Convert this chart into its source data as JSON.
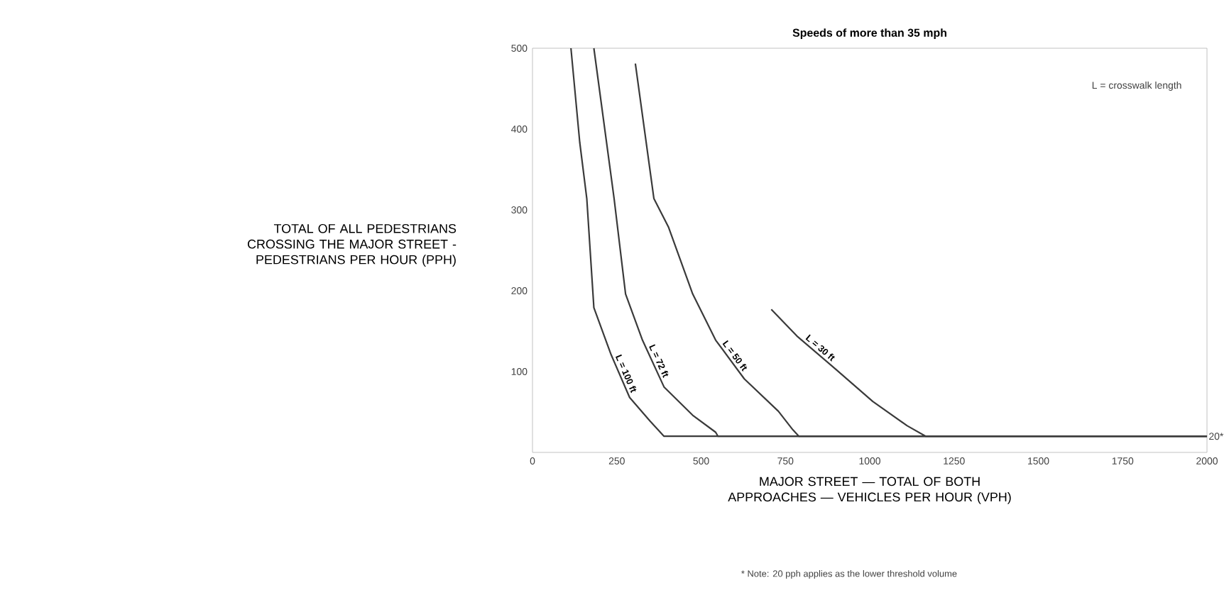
{
  "chart_data": {
    "type": "line",
    "title": "Speeds of more than 35 mph",
    "xlabel": "MAJOR STREET — TOTAL OF BOTH APPROACHES — VEHICLES PER HOUR (VPH)",
    "ylabel": "TOTAL OF ALL PEDESTRIANS CROSSING THE MAJOR STREET - PEDESTRIANS PER HOUR (PPH)",
    "annotations": [
      "L = crosswalk length",
      {
        "text": "20*",
        "x": 2000,
        "y": 20
      },
      "* Note: 20 pph applies as the lower threshold volume"
    ],
    "xlim": [
      0,
      2000
    ],
    "xticks": [
      0,
      250,
      500,
      750,
      1000,
      1250,
      1500,
      1750,
      2000
    ],
    "ylim": [
      0,
      500
    ],
    "yticks": [
      100,
      200,
      300,
      400,
      500
    ],
    "grid": false,
    "marker": "none",
    "line_style": "solid",
    "series": [
      {
        "name": "L = 100 ft",
        "color": "#3a3a3a",
        "x": [
          114,
          140,
          161,
          182,
          233,
          288,
          348,
          390,
          2000
        ],
        "values": [
          500,
          384,
          314,
          179,
          121,
          68,
          39,
          20,
          20
        ]
      },
      {
        "name": "L = 72 ft",
        "color": "#3a3a3a",
        "x": [
          182,
          242,
          276,
          326,
          390,
          475,
          543,
          550,
          2000
        ],
        "values": [
          500,
          314,
          196,
          139,
          81,
          46,
          25,
          20,
          20
        ]
      },
      {
        "name": "L = 50 ft",
        "color": "#3a3a3a",
        "x": [
          305,
          360,
          403,
          475,
          543,
          628,
          729,
          772,
          790,
          2000
        ],
        "values": [
          481,
          314,
          279,
          196,
          139,
          91,
          51,
          28,
          20,
          20
        ]
      },
      {
        "name": "L = 30 ft",
        "color": "#3a3a3a",
        "x": [
          708,
          784,
          899,
          1009,
          1111,
          1166,
          2000
        ],
        "values": [
          177,
          144,
          103,
          63,
          33,
          20,
          20
        ]
      }
    ]
  }
}
